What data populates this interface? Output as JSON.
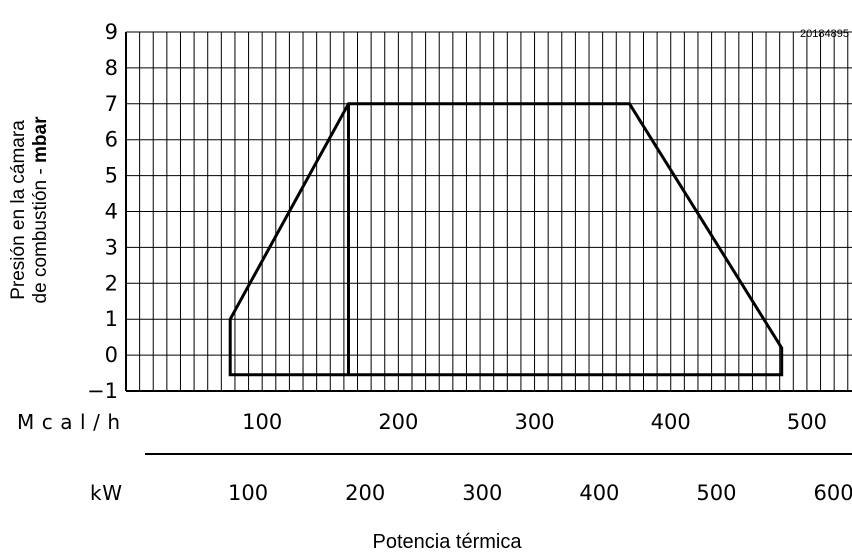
{
  "chart_data": {
    "type": "area",
    "code": "20184895",
    "ylabel_prefix": "Presión en la cámara",
    "ylabel_line2": "de combustión - ",
    "ylabel_bold": "mbar",
    "xlabel": "Potencia térmica",
    "unit_mcal": "Mcal/h",
    "unit_kw": "kW",
    "y_ticks": [
      9,
      8,
      7,
      6,
      5,
      4,
      3,
      2,
      1,
      0,
      -1
    ],
    "y_tick_labels": [
      "9",
      "8",
      "7",
      "6",
      "5",
      "4",
      "3",
      "2",
      "1",
      "0",
      "−1"
    ],
    "ylim": [
      -1,
      9
    ],
    "x_unit": "kW",
    "xlim": [
      0,
      620
    ],
    "mcal_ticks": [
      100,
      200,
      300,
      400,
      500
    ],
    "kw_ticks": [
      100,
      200,
      300,
      400,
      500,
      600
    ],
    "grid": true,
    "series": [
      {
        "values": [
          {
            "x": 89,
            "y": -0.55
          },
          {
            "x": 89,
            "y": 1.0
          },
          {
            "x": 190,
            "y": 7.0
          },
          {
            "x": 430,
            "y": 7.0
          },
          {
            "x": 560,
            "y": 0.2
          },
          {
            "x": 560,
            "y": -0.55
          }
        ]
      }
    ],
    "vertical_line": {
      "x": 190,
      "y_from": -0.55,
      "y_to": 7.0
    }
  }
}
